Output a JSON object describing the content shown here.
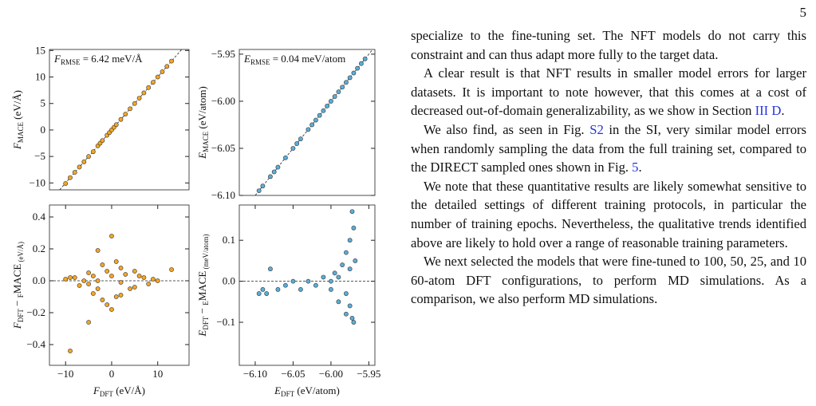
{
  "page_number": "5",
  "paragraphs": [
    [
      {
        "text": "specialize to the fine-tuning set. The NFT models do not carry this constraint and can thus adapt more fully to the target data."
      }
    ],
    [
      {
        "text": "A clear result is that NFT results in smaller model errors for larger datasets. It is important to note however, that this comes at a cost of decreased out-of-domain generalizability, as we show in Section "
      },
      {
        "text": "III D",
        "link": true
      },
      {
        "text": "."
      }
    ],
    [
      {
        "text": "We also find, as seen in Fig. "
      },
      {
        "text": "S2",
        "link": true
      },
      {
        "text": " in the SI, very similar model errors when randomly sampling the data from the full training set, compared to the DIRECT sampled ones shown in Fig. "
      },
      {
        "text": "5",
        "link": true
      },
      {
        "text": "."
      }
    ],
    [
      {
        "text": "We note that these quantitative results are likely somewhat sensitive to the detailed settings of different training protocols, in particular the number of training epochs. Nevertheless, the qualitative trends identified above are likely to hold over a range of reasonable training parameters."
      }
    ],
    [
      {
        "text": "We next selected the models that were fine-tuned to 100, 50, 25, and 10 60-atom DFT configurations, to perform MD simulations. As a comparison, we also perform MD simulations."
      }
    ]
  ],
  "chart_data": [
    {
      "type": "scatter",
      "color": "#f5a623",
      "diagonal": true,
      "annotation": [
        "F",
        "RMSE",
        " = 6.42 meV/Å"
      ],
      "ylabel": [
        "F",
        "MACE",
        " (eV/Å)"
      ],
      "xlim": [
        -13.5,
        16.8
      ],
      "ylim": [
        -11.3,
        15.2
      ],
      "yticks": [
        {
          "value": -10,
          "label": "−10"
        },
        {
          "value": -5,
          "label": "−5"
        },
        0,
        5,
        10,
        15
      ],
      "x": [
        -10,
        -9,
        -8,
        -7,
        -6,
        -5,
        -4,
        -3,
        -2.5,
        -2,
        -1,
        -0.5,
        0,
        0.5,
        1,
        2,
        3,
        4,
        5,
        6,
        7,
        8,
        9,
        10,
        11,
        12,
        13
      ],
      "values": [
        -10.1,
        -9,
        -8,
        -7,
        -6,
        -5,
        -4.1,
        -3,
        -2.5,
        -2,
        -1,
        -0.5,
        0,
        0.5,
        1,
        2,
        3,
        4,
        5,
        6,
        7,
        8,
        9,
        10,
        11,
        12,
        13
      ]
    },
    {
      "type": "scatter",
      "color": "#5aaed8",
      "diagonal": true,
      "annotation": [
        "E",
        "RMSE",
        " = 0.04 meV/atom"
      ],
      "ylabel": [
        "E",
        "MACE",
        " (eV/atom)"
      ],
      "xlim": [
        -6.121,
        -5.942
      ],
      "ylim": [
        -6.1,
        -5.945
      ],
      "yticks": [
        {
          "value": -6.1,
          "label": "−6.10"
        },
        {
          "value": -6.05,
          "label": "−6.05"
        },
        {
          "value": -6.0,
          "label": "−6.00"
        },
        {
          "value": -5.95,
          "label": "−5.95"
        }
      ],
      "x": [
        -6.095,
        -6.09,
        -6.08,
        -6.075,
        -6.07,
        -6.06,
        -6.05,
        -6.045,
        -6.04,
        -6.03,
        -6.025,
        -6.02,
        -6.015,
        -6.01,
        -6.005,
        -6.0,
        -5.995,
        -5.99,
        -5.985,
        -5.98,
        -5.975,
        -5.97,
        -5.965,
        -5.96,
        -5.955
      ],
      "values": [
        -6.095,
        -6.09,
        -6.08,
        -6.075,
        -6.07,
        -6.06,
        -6.05,
        -6.045,
        -6.04,
        -6.03,
        -6.025,
        -6.02,
        -6.015,
        -6.01,
        -6.005,
        -6.0,
        -5.995,
        -5.99,
        -5.985,
        -5.98,
        -5.975,
        -5.97,
        -5.965,
        -5.96,
        -5.955
      ]
    },
    {
      "type": "scatter",
      "color": "#f5a623",
      "zero_line": true,
      "xlabel": [
        "F",
        "DFT",
        " (eV/Å)"
      ],
      "ylabel": [
        "F",
        "DFT",
        " − ",
        "F",
        "MACE",
        " (eV/Å)"
      ],
      "xlim": [
        -13.5,
        16.8
      ],
      "ylim": [
        -0.53,
        0.475
      ],
      "xticks": [
        {
          "value": -10,
          "label": "−10"
        },
        0,
        10
      ],
      "yticks": [
        {
          "value": -0.4,
          "label": "−0.4"
        },
        {
          "value": -0.2,
          "label": "−0.2"
        },
        {
          "value": 0,
          "label": "0.0"
        },
        0.2,
        0.4
      ],
      "x": [
        -10,
        -9,
        -8,
        -7,
        -6,
        -5,
        -5,
        -4,
        -4,
        -3,
        -3,
        -2,
        -2,
        -1,
        -1,
        0,
        0,
        1,
        1,
        2,
        2,
        3,
        4,
        5,
        5,
        6,
        7,
        8,
        9,
        10,
        13,
        -9,
        -5,
        0,
        -3,
        2
      ],
      "values": [
        0.01,
        -0.44,
        0.02,
        -0.03,
        0.0,
        -0.26,
        0.05,
        0.03,
        -0.08,
        0.19,
        -0.05,
        0.1,
        -0.12,
        0.06,
        -0.15,
        0.28,
        -0.18,
        0.12,
        -0.1,
        0.08,
        -0.09,
        0.04,
        -0.05,
        0.06,
        -0.04,
        0.03,
        0.02,
        -0.02,
        0.01,
        0.0,
        0.07,
        0.02,
        -0.02,
        0.03,
        0.0,
        -0.01
      ]
    },
    {
      "type": "scatter",
      "color": "#5aaed8",
      "zero_line": true,
      "xlabel": [
        "E",
        "DFT",
        " (eV/atom)"
      ],
      "ylabel": [
        "E",
        "DFT",
        " − ",
        "E",
        "MACE",
        " (meV/atom)"
      ],
      "xlim": [
        -6.121,
        -5.942
      ],
      "ylim": [
        -0.205,
        0.186
      ],
      "xticks": [
        {
          "value": -6.1,
          "label": "−6.10"
        },
        {
          "value": -6.05,
          "label": "−6.05"
        },
        {
          "value": -6.0,
          "label": "−6.00"
        },
        {
          "value": -5.95,
          "label": "−5.95"
        }
      ],
      "yticks": [
        {
          "value": -0.1,
          "label": "−0.1"
        },
        {
          "value": 0,
          "label": "0.0"
        },
        0.1
      ],
      "x": [
        -6.095,
        -6.09,
        -6.085,
        -6.08,
        -6.07,
        -6.06,
        -6.05,
        -6.04,
        -6.03,
        -6.02,
        -6.01,
        -6.0,
        -5.995,
        -5.99,
        -5.985,
        -5.98,
        -5.98,
        -5.975,
        -5.975,
        -5.972,
        -5.97,
        -5.97,
        -5.968,
        -5.975,
        -5.98,
        -5.99,
        -6.0,
        -5.972
      ],
      "values": [
        -0.03,
        -0.02,
        -0.03,
        0.03,
        -0.02,
        -0.01,
        0.0,
        -0.02,
        0.0,
        -0.01,
        0.01,
        -0.02,
        0.02,
        -0.05,
        0.04,
        0.07,
        -0.08,
        0.1,
        -0.06,
        0.17,
        0.13,
        -0.1,
        0.05,
        0.03,
        -0.03,
        0.01,
        0.0,
        -0.09
      ]
    }
  ]
}
